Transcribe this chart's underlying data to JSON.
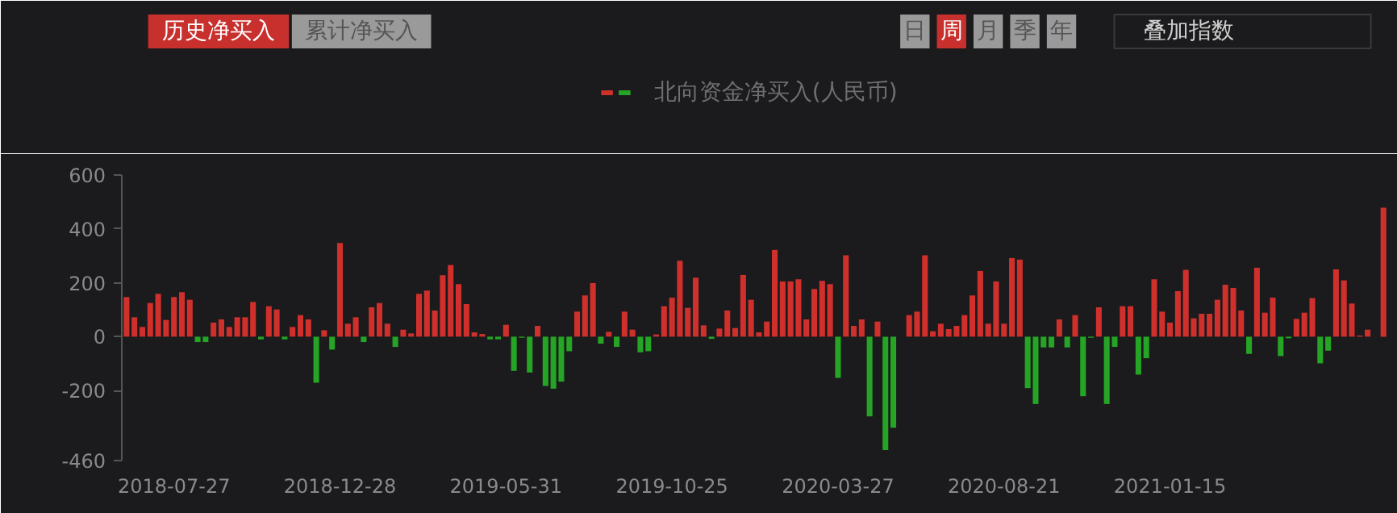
{
  "chart_data": {
    "type": "bar",
    "annotations": [
      "历史净买入",
      "累计净买入",
      "日",
      "周",
      "月",
      "季",
      "年",
      "叠加指数"
    ],
    "categories": [
      null,
      null,
      null,
      null,
      null,
      null,
      "2018-07-27",
      null,
      null,
      null,
      null,
      null,
      null,
      null,
      null,
      null,
      null,
      null,
      null,
      null,
      null,
      null,
      null,
      null,
      null,
      null,
      null,
      "2018-12-28",
      null,
      null,
      null,
      null,
      null,
      null,
      null,
      null,
      null,
      null,
      null,
      null,
      null,
      null,
      null,
      null,
      null,
      null,
      null,
      null,
      "2019-05-31",
      null,
      null,
      null,
      null,
      null,
      null,
      null,
      null,
      null,
      null,
      null,
      null,
      null,
      null,
      null,
      null,
      null,
      null,
      null,
      null,
      "2019-10-25",
      null,
      null,
      null,
      null,
      null,
      null,
      null,
      null,
      null,
      null,
      null,
      null,
      null,
      null,
      null,
      null,
      null,
      null,
      null,
      null,
      "2020-03-27",
      null,
      null,
      null,
      null,
      null,
      null,
      null,
      null,
      null,
      null,
      null,
      null,
      null,
      null,
      null,
      null,
      null,
      null,
      null,
      null,
      "2020-08-21",
      null,
      null,
      null,
      null,
      null,
      null,
      null,
      null,
      null,
      null,
      null,
      null,
      null,
      null,
      null,
      null,
      null,
      null,
      null,
      null,
      "2021-01-15",
      null,
      null,
      null,
      null,
      null,
      null,
      null,
      null,
      null,
      null,
      null,
      null,
      null,
      null,
      null,
      null,
      null,
      null,
      null,
      null,
      null,
      null,
      null,
      null,
      null,
      null,
      null
    ],
    "series": [
      {
        "name": "北向资金净买入(人民币)",
        "values": [
          147,
          72,
          36,
          125,
          159,
          62,
          147,
          165,
          137,
          -20,
          -20,
          52,
          64,
          36,
          72,
          72,
          129,
          -10,
          113,
          101,
          -10,
          36,
          80,
          64,
          -171,
          24,
          -48,
          348,
          48,
          72,
          -20,
          109,
          125,
          48,
          -38,
          26,
          12,
          159,
          171,
          97,
          228,
          266,
          195,
          121,
          16,
          10,
          -10,
          -10,
          44,
          -127,
          -4,
          -133,
          40,
          -183,
          -193,
          -167,
          -54,
          93,
          153,
          199,
          -26,
          18,
          -38,
          93,
          26,
          -58,
          -54,
          8,
          113,
          145,
          282,
          107,
          219,
          42,
          -8,
          30,
          97,
          32,
          229,
          137,
          16,
          56,
          322,
          205,
          205,
          213,
          64,
          177,
          207,
          195,
          -153,
          302,
          40,
          64,
          -296,
          56,
          -421,
          -338,
          null,
          80,
          93,
          302,
          20,
          48,
          28,
          40,
          80,
          153,
          244,
          48,
          205,
          48,
          292,
          286,
          -191,
          -250,
          -40,
          -40,
          64,
          -40,
          80,
          -221,
          -4,
          109,
          -250,
          -38,
          113,
          113,
          -141,
          -80,
          213,
          93,
          52,
          169,
          248,
          68,
          85,
          85,
          137,
          193,
          181,
          97,
          -64,
          256,
          89,
          145,
          -72,
          -6,
          66,
          89,
          143,
          -99,
          -52,
          250,
          209,
          123,
          4,
          26,
          null,
          479
        ],
        "colors": [
          "#d0302c",
          "#d0302c",
          "#d0302c",
          "#d0302c",
          "#d0302c",
          "#d0302c",
          "#d0302c",
          "#d0302c",
          "#d0302c",
          "#25a425",
          "#25a425",
          "#d0302c",
          "#d0302c",
          "#d0302c",
          "#d0302c",
          "#d0302c",
          "#d0302c",
          "#25a425",
          "#d0302c",
          "#d0302c",
          "#25a425",
          "#d0302c",
          "#d0302c",
          "#d0302c",
          "#25a425",
          "#d0302c",
          "#25a425",
          "#d0302c",
          "#d0302c",
          "#d0302c",
          "#25a425",
          "#d0302c",
          "#d0302c",
          "#d0302c",
          "#25a425",
          "#d0302c",
          "#d0302c",
          "#d0302c",
          "#d0302c",
          "#d0302c",
          "#d0302c",
          "#d0302c",
          "#d0302c",
          "#d0302c",
          "#d0302c",
          "#d0302c",
          "#25a425",
          "#25a425",
          "#d0302c",
          "#25a425",
          "#25a425",
          "#25a425",
          "#d0302c",
          "#25a425",
          "#25a425",
          "#25a425",
          "#25a425",
          "#d0302c",
          "#d0302c",
          "#d0302c",
          "#25a425",
          "#d0302c",
          "#25a425",
          "#d0302c",
          "#d0302c",
          "#25a425",
          "#25a425",
          "#d0302c",
          "#d0302c",
          "#d0302c",
          "#d0302c",
          "#d0302c",
          "#d0302c",
          "#d0302c",
          "#25a425",
          "#d0302c",
          "#d0302c",
          "#d0302c",
          "#d0302c",
          "#d0302c",
          "#d0302c",
          "#d0302c",
          "#d0302c",
          "#d0302c",
          "#d0302c",
          "#d0302c",
          "#d0302c",
          "#d0302c",
          "#d0302c",
          "#d0302c",
          "#25a425",
          "#d0302c",
          "#d0302c",
          "#d0302c",
          "#25a425",
          "#d0302c",
          "#25a425",
          "#25a425",
          "#d0302c",
          "#d0302c",
          "#d0302c",
          "#d0302c",
          "#d0302c",
          "#d0302c",
          "#d0302c",
          "#d0302c",
          "#d0302c",
          "#d0302c",
          "#d0302c",
          "#d0302c",
          "#d0302c",
          "#d0302c",
          "#d0302c",
          "#d0302c",
          "#25a425",
          "#25a425",
          "#25a425",
          "#25a425",
          "#d0302c",
          "#25a425",
          "#d0302c",
          "#25a425",
          "#25a425",
          "#d0302c",
          "#25a425",
          "#25a425",
          "#d0302c",
          "#d0302c",
          "#25a425",
          "#25a425",
          "#d0302c",
          "#d0302c",
          "#d0302c",
          "#d0302c",
          "#d0302c",
          "#d0302c",
          "#d0302c",
          "#d0302c",
          "#d0302c",
          "#d0302c",
          "#d0302c",
          "#d0302c",
          "#25a425",
          "#d0302c",
          "#d0302c",
          "#d0302c",
          "#25a425",
          "#25a425",
          "#d0302c",
          "#d0302c",
          "#d0302c",
          "#25a425",
          "#25a425",
          "#d0302c",
          "#d0302c",
          "#d0302c",
          "#d0302c",
          "#d0302c",
          "#d0302c",
          "#d0302c"
        ]
      }
    ],
    "ylim": [
      -460,
      600
    ],
    "yticks": [
      600,
      400,
      200,
      0,
      -200,
      -460
    ],
    "grid": false,
    "legend": "top"
  }
}
